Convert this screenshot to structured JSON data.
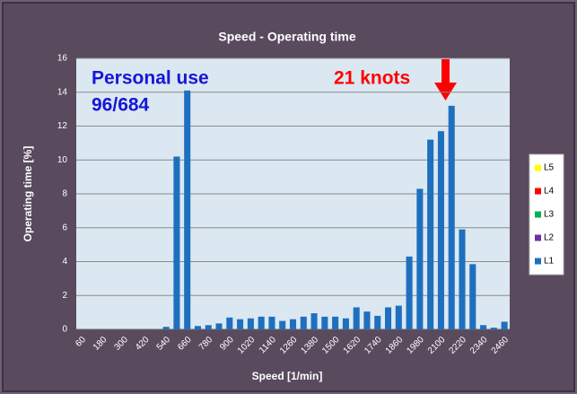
{
  "chart_data": {
    "type": "bar",
    "stacked": true,
    "title": "Speed - Operating time",
    "x_label": "Speed  [1/min]",
    "y_label": "Operating time [%]",
    "annotations": [
      "Personal use",
      "96/684",
      "21 knots"
    ],
    "categories": [
      60,
      null,
      180,
      null,
      300,
      null,
      420,
      null,
      540,
      null,
      660,
      null,
      780,
      null,
      900,
      null,
      1020,
      null,
      1140,
      null,
      1260,
      null,
      1380,
      null,
      1500,
      null,
      1620,
      null,
      1740,
      null,
      1860,
      null,
      1980,
      null,
      2100,
      null,
      2220,
      null,
      2340,
      null,
      2460
    ],
    "series": [
      {
        "name": "L1",
        "color": "#1f6fbf",
        "values": [
          0,
          0,
          0,
          0,
          0,
          0,
          0,
          0,
          0.15,
          10.2,
          14.1,
          0.2,
          0.25,
          0.35,
          0.7,
          0.6,
          0.65,
          0.75,
          0.75,
          0.5,
          0.6,
          0.75,
          0.95,
          0.75,
          0.75,
          0.65,
          1.3,
          1.05,
          0.8,
          1.3,
          1.4,
          4.3,
          8.3,
          11.2,
          11.7,
          13.2,
          5.9,
          3.85,
          0.25,
          0.1,
          0.45
        ]
      },
      {
        "name": "L2",
        "color": "#7030a0",
        "values": [
          0,
          0,
          0,
          0,
          0,
          0,
          0,
          0,
          0,
          0,
          0,
          0,
          0,
          0,
          0,
          0,
          0,
          0,
          0,
          0,
          0,
          0,
          0,
          0,
          0,
          0,
          0,
          0,
          0,
          0,
          0,
          0,
          0,
          0,
          0,
          0,
          0,
          0,
          0,
          0,
          0
        ]
      },
      {
        "name": "L3",
        "color": "#00b050",
        "values": [
          0,
          0,
          0,
          0,
          0,
          0,
          0,
          0,
          0,
          0,
          0,
          0,
          0,
          0,
          0,
          0,
          0,
          0,
          0,
          0,
          0,
          0,
          0,
          0,
          0,
          0,
          0,
          0,
          0,
          0,
          0,
          0,
          0,
          0,
          0,
          0,
          0,
          0,
          0,
          0,
          0
        ]
      },
      {
        "name": "L4",
        "color": "#ff0000",
        "values": [
          0,
          0,
          0,
          0,
          0,
          0,
          0,
          0,
          0,
          0,
          0,
          0,
          0,
          0,
          0,
          0,
          0,
          0,
          0,
          0,
          0,
          0,
          0,
          0,
          0,
          0,
          0,
          0,
          0,
          0,
          0,
          0,
          0,
          0,
          0,
          0,
          0,
          0,
          0,
          0,
          0
        ]
      },
      {
        "name": "L5",
        "color": "#ffff00",
        "values": [
          0,
          0,
          0,
          0,
          0,
          0,
          0,
          0,
          0,
          0,
          0,
          0,
          0,
          0,
          0,
          0,
          0,
          0,
          0,
          0,
          0,
          0,
          0,
          0,
          0,
          0,
          0,
          0,
          0,
          0,
          0,
          0,
          0,
          0,
          0,
          0,
          0,
          0,
          0,
          0,
          0
        ]
      }
    ],
    "ylim": [
      0,
      16
    ],
    "yticks": [
      0,
      2,
      4,
      6,
      8,
      10,
      12,
      14,
      16
    ],
    "grid": true,
    "legend": "right"
  }
}
